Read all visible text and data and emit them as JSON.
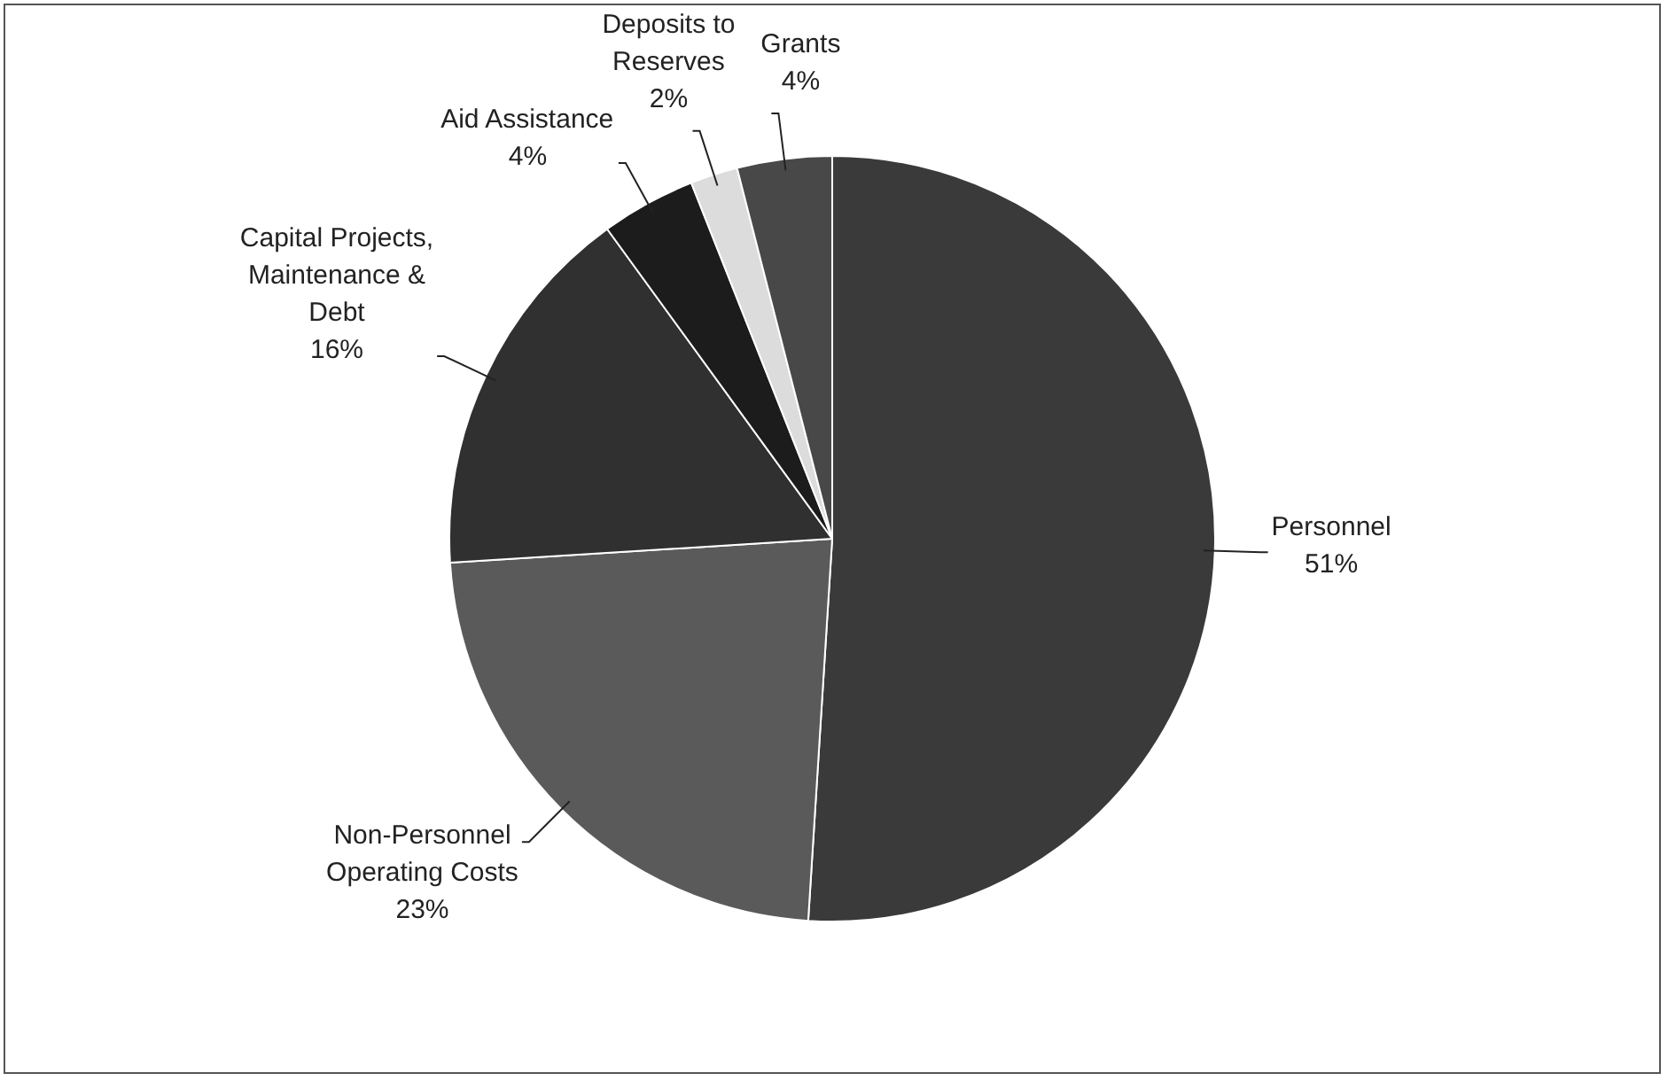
{
  "chart_data": {
    "type": "pie",
    "categories": [
      "Personnel",
      "Non-Personnel Operating Costs",
      "Capital Projects, Maintenance & Debt",
      "Aid Assistance",
      "Deposits to Reserves",
      "Grants"
    ],
    "values": [
      51,
      23,
      16,
      4,
      2,
      4
    ],
    "value_labels": [
      "51%",
      "23%",
      "16%",
      "4%",
      "2%",
      "4%"
    ],
    "colors": [
      "#3a3a3a",
      "#5a5a5a",
      "#303030",
      "#1c1c1c",
      "#dcdcdc",
      "#484848"
    ],
    "legend": false
  }
}
